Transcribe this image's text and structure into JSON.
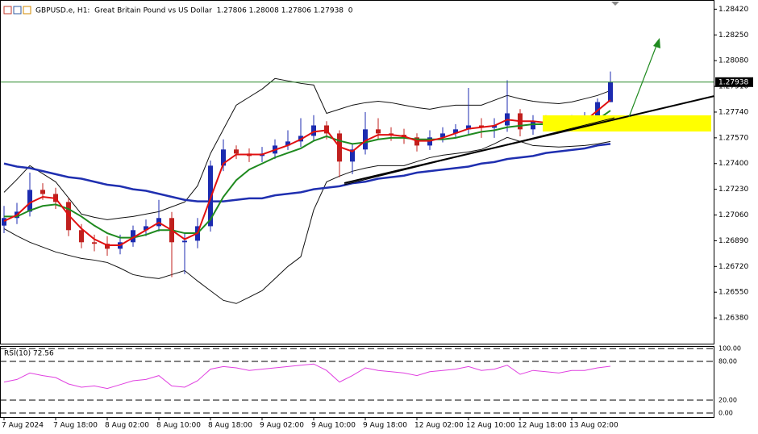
{
  "chart_data": [
    {
      "type": "candlestick",
      "title": "GBPUSD.e, H1:  Great Britain Pound vs US Dollar  1.27806 1.28008 1.27806 1.27938  0",
      "categories": [
        "7 Aug 2024",
        null,
        null,
        null,
        "7 Aug 18:00",
        null,
        null,
        null,
        "8 Aug 02:00",
        null,
        null,
        null,
        "8 Aug 10:00",
        null,
        null,
        null,
        "8 Aug 18:00",
        null,
        null,
        null,
        "9 Aug 02:00",
        null,
        null,
        null,
        "9 Aug 10:00",
        null,
        null,
        null,
        "9 Aug 18:00",
        null,
        null,
        null,
        "12 Aug 02:00",
        null,
        null,
        null,
        "12 Aug 10:00",
        null,
        null,
        null,
        "12 Aug 18:00",
        null,
        null,
        null,
        "13 Aug 02:00",
        null,
        null,
        null
      ],
      "open": [
        1.2699,
        1.2704,
        1.27082,
        1.27226,
        1.27199,
        1.27146,
        1.2696,
        1.2688,
        1.2687,
        1.26837,
        1.2688,
        1.2696,
        1.26986,
        1.2704,
        1.2688,
        1.2689,
        1.26986,
        1.27386,
        1.27493,
        1.27466,
        1.2745,
        1.27466,
        1.27519,
        1.27546,
        1.27583,
        1.27652,
        1.27599,
        1.27413,
        1.27493,
        1.27626,
        1.27599,
        1.2759,
        1.27573,
        1.27519,
        1.27573,
        1.27599,
        1.27626,
        1.27652,
        1.27636,
        1.27652,
        1.27732,
        1.27626,
        1.27679,
        1.27668,
        1.27652,
        1.27679,
        1.2769,
        1.27806
      ],
      "high": [
        1.2712,
        1.2714,
        1.2734,
        1.2727,
        1.2724,
        1.2717,
        1.27,
        1.2693,
        1.2692,
        1.2693,
        1.2699,
        1.2703,
        1.2716,
        1.2708,
        1.2694,
        1.2704,
        1.2742,
        1.2756,
        1.2752,
        1.275,
        1.2751,
        1.2756,
        1.2762,
        1.277,
        1.2772,
        1.2768,
        1.2762,
        1.2753,
        1.2774,
        1.277,
        1.2764,
        1.2763,
        1.276,
        1.2762,
        1.2764,
        1.2766,
        1.279,
        1.277,
        1.277,
        1.2795,
        1.2776,
        1.2772,
        1.2772,
        1.277,
        1.2772,
        1.2774,
        1.2783,
        1.28008
      ],
      "low": [
        1.2694,
        1.27,
        1.2705,
        1.2716,
        1.271,
        1.2692,
        1.2684,
        1.2682,
        1.2679,
        1.268,
        1.2685,
        1.2692,
        1.2695,
        1.2665,
        1.2667,
        1.2684,
        1.2695,
        1.2735,
        1.2743,
        1.2741,
        1.2741,
        1.2743,
        1.2749,
        1.2751,
        1.2755,
        1.2756,
        1.2731,
        1.2733,
        1.2746,
        1.2756,
        1.2755,
        1.2753,
        1.2748,
        1.2749,
        1.2754,
        1.2757,
        1.2759,
        1.2757,
        1.2757,
        1.2761,
        1.2758,
        1.2759,
        1.2763,
        1.2761,
        1.2763,
        1.2765,
        1.2766,
        1.27806
      ],
      "close": [
        1.2704,
        1.27082,
        1.27226,
        1.27199,
        1.27146,
        1.2696,
        1.2688,
        1.2687,
        1.26837,
        1.2688,
        1.2696,
        1.26986,
        1.2704,
        1.2688,
        1.2689,
        1.26986,
        1.27386,
        1.27493,
        1.27466,
        1.2745,
        1.27466,
        1.27519,
        1.27546,
        1.27583,
        1.27652,
        1.27599,
        1.27413,
        1.27493,
        1.27626,
        1.27599,
        1.2759,
        1.27573,
        1.27519,
        1.27573,
        1.27599,
        1.27626,
        1.27652,
        1.27636,
        1.27652,
        1.27732,
        1.27626,
        1.27679,
        1.27668,
        1.27652,
        1.27679,
        1.2769,
        1.27806,
        1.27938
      ],
      "up_color": "#1c2bb0",
      "down_color": "#c0201e",
      "series": [
        {
          "color": "#111111",
          "values": [
            1.2721,
            1.27295,
            1.27386,
            1.27333,
            1.27279,
            1.27173,
            1.27066,
            1.27045,
            1.27029,
            1.2704,
            1.2705,
            1.27066,
            1.27082,
            1.27114,
            1.27146,
            1.27253,
            1.27466,
            1.27626,
            1.27786,
            1.27839,
            1.27892,
            1.27962,
            1.27946,
            1.2793,
            1.27919,
            1.27732,
            1.27759,
            1.27786,
            1.27802,
            1.27812,
            1.27802,
            1.27786,
            1.2777,
            1.27759,
            1.27775,
            1.27786,
            1.27786,
            1.27786,
            1.27818,
            1.2785,
            1.27828,
            1.27812,
            1.27802,
            1.27796,
            1.27807,
            1.27828,
            1.2785,
            1.27882
          ]
        },
        {
          "color": "#111111",
          "values": [
            1.2697,
            1.26922,
            1.2688,
            1.26848,
            1.26816,
            1.26794,
            1.26773,
            1.26762,
            1.26746,
            1.26709,
            1.26666,
            1.2665,
            1.2664,
            1.26666,
            1.26693,
            1.26624,
            1.2656,
            1.26496,
            1.26475,
            1.26517,
            1.2656,
            1.2664,
            1.2672,
            1.26784,
            1.27093,
            1.27279,
            1.27317,
            1.27349,
            1.2737,
            1.27386,
            1.27386,
            1.27386,
            1.27413,
            1.27439,
            1.27455,
            1.27466,
            1.27477,
            1.27493,
            1.2753,
            1.27573,
            1.27546,
            1.27519,
            1.27514,
            1.27509,
            1.27514,
            1.27519,
            1.2753,
            1.27546
          ]
        },
        {
          "color": "#1f2fb0",
          "values": [
            1.274,
            1.2738,
            1.2737,
            1.2735,
            1.2733,
            1.2731,
            1.273,
            1.2728,
            1.2726,
            1.2725,
            1.2723,
            1.2722,
            1.272,
            1.2718,
            1.2716,
            1.2715,
            1.2715,
            1.2715,
            1.2716,
            1.2717,
            1.2717,
            1.2719,
            1.272,
            1.2721,
            1.2723,
            1.2724,
            1.2725,
            1.2727,
            1.2728,
            1.273,
            1.2731,
            1.2732,
            1.2734,
            1.2735,
            1.2736,
            1.2737,
            1.2738,
            1.274,
            1.2741,
            1.2743,
            1.2744,
            1.2745,
            1.2747,
            1.2748,
            1.2749,
            1.275,
            1.2752,
            1.2753
          ]
        },
        {
          "color": "#1f8a1f",
          "values": [
            1.2705,
            1.2705,
            1.2709,
            1.2712,
            1.2713,
            1.271,
            1.2705,
            1.2699,
            1.2694,
            1.2691,
            1.2691,
            1.2693,
            1.2696,
            1.2696,
            1.2694,
            1.2694,
            1.2703,
            1.2718,
            1.2729,
            1.2736,
            1.274,
            1.2744,
            1.2747,
            1.275,
            1.2755,
            1.2758,
            1.2755,
            1.2753,
            1.2754,
            1.2756,
            1.2757,
            1.2757,
            1.2756,
            1.2756,
            1.2756,
            1.2757,
            1.2759,
            1.2761,
            1.2762,
            1.2764,
            1.2765,
            1.2766,
            1.2766,
            1.2766,
            1.2766,
            1.2767,
            1.2769,
            1.2775
          ]
        },
        {
          "color": "#e01010",
          "values": [
            1.2702,
            1.2706,
            1.2714,
            1.2718,
            1.2717,
            1.2706,
            1.2697,
            1.269,
            1.2686,
            1.2686,
            1.2691,
            1.2696,
            1.2701,
            1.2696,
            1.269,
            1.2694,
            1.2717,
            1.274,
            1.2746,
            1.2746,
            1.2746,
            1.2749,
            1.2752,
            1.2756,
            1.2761,
            1.2762,
            1.2751,
            1.2748,
            1.2755,
            1.2759,
            1.2759,
            1.2758,
            1.2755,
            1.2755,
            1.2757,
            1.276,
            1.2763,
            1.2764,
            1.2765,
            1.2769,
            1.2768,
            1.2768,
            1.2767,
            1.2766,
            1.2767,
            1.2768,
            1.2775,
            1.2782
          ]
        }
      ],
      "current_price": 1.27938,
      "ylim": [
        1.2621,
        1.2847
      ],
      "yticks": [
        {
          "value": 1.2842,
          "label": "1.28420"
        },
        {
          "value": 1.2825,
          "label": "1.28250"
        },
        {
          "value": 1.2808,
          "label": "1.28080"
        },
        {
          "value": 1.2791,
          "label": "1.27910"
        },
        {
          "value": 1.2774,
          "label": "1.27740"
        },
        {
          "value": 1.2757,
          "label": "1.27570"
        },
        {
          "value": 1.274,
          "label": "1.27400"
        },
        {
          "value": 1.2723,
          "label": "1.27230"
        },
        {
          "value": 1.2706,
          "label": "1.27060"
        },
        {
          "value": 1.2689,
          "label": "1.26890"
        },
        {
          "value": 1.2672,
          "label": "1.26720"
        },
        {
          "value": 1.2655,
          "label": "1.26550"
        },
        {
          "value": 1.2638,
          "label": "1.26380"
        }
      ]
    },
    {
      "type": "line",
      "title": "RSI(10) 72.56",
      "color": "#e040e0",
      "values": [
        48,
        52,
        62,
        58,
        55,
        45,
        40,
        42,
        38,
        44,
        50,
        52,
        58,
        42,
        40,
        50,
        68,
        72,
        70,
        66,
        68,
        70,
        72,
        74,
        76,
        66,
        48,
        58,
        70,
        66,
        64,
        62,
        58,
        64,
        66,
        68,
        72,
        66,
        68,
        74,
        60,
        66,
        64,
        62,
        66,
        66,
        70,
        72.56
      ],
      "ylim": [
        0,
        100
      ],
      "yticks": [
        {
          "value": 100,
          "label": "100.00"
        },
        {
          "value": 80,
          "label": "80.00"
        },
        {
          "value": 20,
          "label": "20.00"
        },
        {
          "value": 0,
          "label": "0.00"
        }
      ]
    }
  ]
}
